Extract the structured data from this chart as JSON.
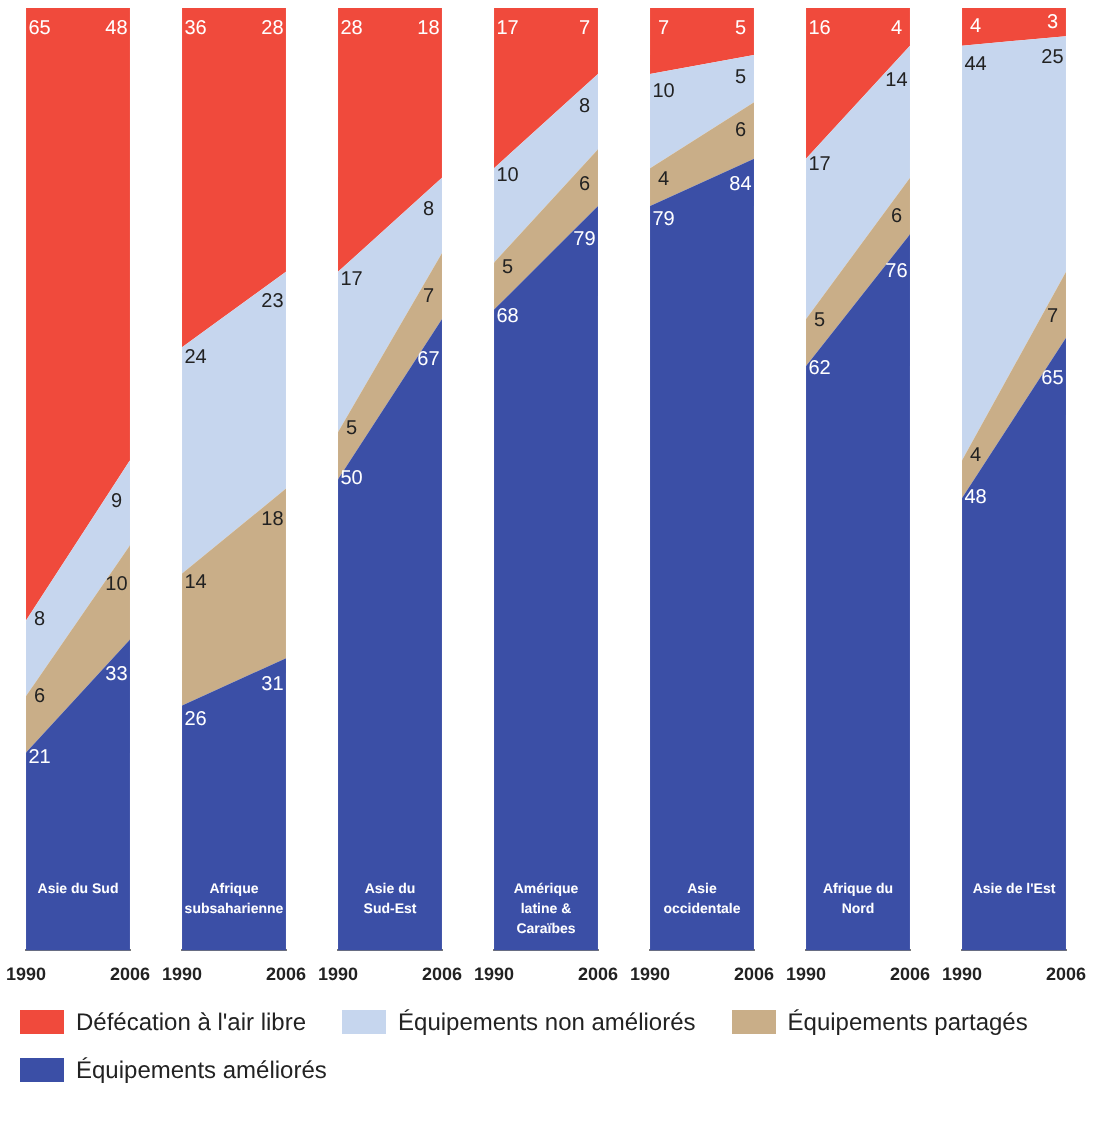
{
  "chart_data": [
    {
      "type": "area",
      "stacked": true,
      "legend": "bottom",
      "tick_labels": "x",
      "grid": false,
      "categories": [
        "1990",
        "2006"
      ],
      "annotations": [
        "Asie du Sud"
      ],
      "series": [
        {
          "name": "Équipements améliorés",
          "color": "#3b4fa6",
          "values": [
            21,
            33
          ],
          "value_labels": [
            "21",
            "33"
          ]
        },
        {
          "name": "Équipements partagés",
          "color": "#c9ae88",
          "values": [
            6,
            10
          ],
          "value_labels": [
            "6",
            "10"
          ]
        },
        {
          "name": "Équipements non améliorés",
          "color": "#c6d6ee",
          "values": [
            8,
            9
          ],
          "value_labels": [
            "8",
            "9"
          ]
        },
        {
          "name": "Défécation à l'air libre",
          "color": "#f04a3c",
          "values": [
            65,
            48
          ],
          "value_labels": [
            "65",
            "48"
          ]
        }
      ]
    },
    {
      "type": "area",
      "stacked": true,
      "tick_labels": "x",
      "grid": false,
      "categories": [
        "1990",
        "2006"
      ],
      "annotations": [
        "Afrique subsaharienne"
      ],
      "series": [
        {
          "color": "#3b4fa6",
          "values": [
            26,
            31
          ],
          "value_labels": [
            "26",
            "31"
          ]
        },
        {
          "color": "#c9ae88",
          "values": [
            14,
            18
          ],
          "value_labels": [
            "14",
            "18"
          ]
        },
        {
          "color": "#c6d6ee",
          "values": [
            24,
            23
          ],
          "value_labels": [
            "24",
            "23"
          ]
        },
        {
          "color": "#f04a3c",
          "values": [
            36,
            28
          ],
          "value_labels": [
            "36",
            "28"
          ]
        }
      ]
    },
    {
      "type": "area",
      "stacked": true,
      "tick_labels": "x",
      "grid": false,
      "categories": [
        "1990",
        "2006"
      ],
      "annotations": [
        "Asie du Sud-Est"
      ],
      "series": [
        {
          "color": "#3b4fa6",
          "values": [
            50,
            67
          ],
          "value_labels": [
            "50",
            "67"
          ]
        },
        {
          "color": "#c9ae88",
          "values": [
            5,
            7
          ],
          "value_labels": [
            "5",
            "7"
          ]
        },
        {
          "color": "#c6d6ee",
          "values": [
            17,
            8
          ],
          "value_labels": [
            "17",
            "8"
          ]
        },
        {
          "color": "#f04a3c",
          "values": [
            28,
            18
          ],
          "value_labels": [
            "28",
            "18"
          ]
        }
      ]
    },
    {
      "type": "area",
      "stacked": true,
      "tick_labels": "x",
      "grid": false,
      "categories": [
        "1990",
        "2006"
      ],
      "annotations": [
        "Amérique latine & Caraïbes"
      ],
      "series": [
        {
          "color": "#3b4fa6",
          "values": [
            68,
            79
          ],
          "value_labels": [
            "68",
            "79"
          ]
        },
        {
          "color": "#c9ae88",
          "values": [
            5,
            6
          ],
          "value_labels": [
            "5",
            "6"
          ]
        },
        {
          "color": "#c6d6ee",
          "values": [
            10,
            8
          ],
          "value_labels": [
            "10",
            "8"
          ]
        },
        {
          "color": "#f04a3c",
          "values": [
            17,
            7
          ],
          "value_labels": [
            "17",
            "7"
          ]
        }
      ]
    },
    {
      "type": "area",
      "stacked": true,
      "tick_labels": "x",
      "grid": false,
      "categories": [
        "1990",
        "2006"
      ],
      "annotations": [
        "Asie occidentale"
      ],
      "series": [
        {
          "color": "#3b4fa6",
          "values": [
            79,
            84
          ],
          "value_labels": [
            "79",
            "84"
          ]
        },
        {
          "color": "#c9ae88",
          "values": [
            4,
            6
          ],
          "value_labels": [
            "4",
            "6"
          ]
        },
        {
          "color": "#c6d6ee",
          "values": [
            10,
            5
          ],
          "value_labels": [
            "10",
            "5"
          ]
        },
        {
          "color": "#f04a3c",
          "values": [
            7,
            5
          ],
          "value_labels": [
            "7",
            "5"
          ]
        }
      ]
    },
    {
      "type": "area",
      "stacked": true,
      "tick_labels": "x",
      "grid": false,
      "categories": [
        "1990",
        "2006"
      ],
      "annotations": [
        "Afrique du Nord"
      ],
      "series": [
        {
          "color": "#3b4fa6",
          "values": [
            62,
            76
          ],
          "value_labels": [
            "62",
            "76"
          ]
        },
        {
          "color": "#c9ae88",
          "values": [
            5,
            6
          ],
          "value_labels": [
            "5",
            "6"
          ]
        },
        {
          "color": "#c6d6ee",
          "values": [
            17,
            14
          ],
          "value_labels": [
            "17",
            "14"
          ]
        },
        {
          "color": "#f04a3c",
          "values": [
            16,
            4
          ],
          "value_labels": [
            "16",
            "4"
          ]
        }
      ]
    },
    {
      "type": "area",
      "stacked": true,
      "tick_labels": "x",
      "grid": false,
      "categories": [
        "1990",
        "2006"
      ],
      "annotations": [
        "Asie de l'Est"
      ],
      "series": [
        {
          "color": "#3b4fa6",
          "values": [
            48,
            65
          ],
          "value_labels": [
            "48",
            "65"
          ]
        },
        {
          "color": "#c9ae88",
          "values": [
            4,
            7
          ],
          "value_labels": [
            "4",
            "7"
          ]
        },
        {
          "color": "#c6d6ee",
          "values": [
            44,
            25
          ],
          "value_labels": [
            "44",
            "25"
          ]
        },
        {
          "color": "#f04a3c",
          "values": [
            4,
            3
          ],
          "value_labels": [
            "4",
            "3"
          ]
        }
      ]
    }
  ]
}
